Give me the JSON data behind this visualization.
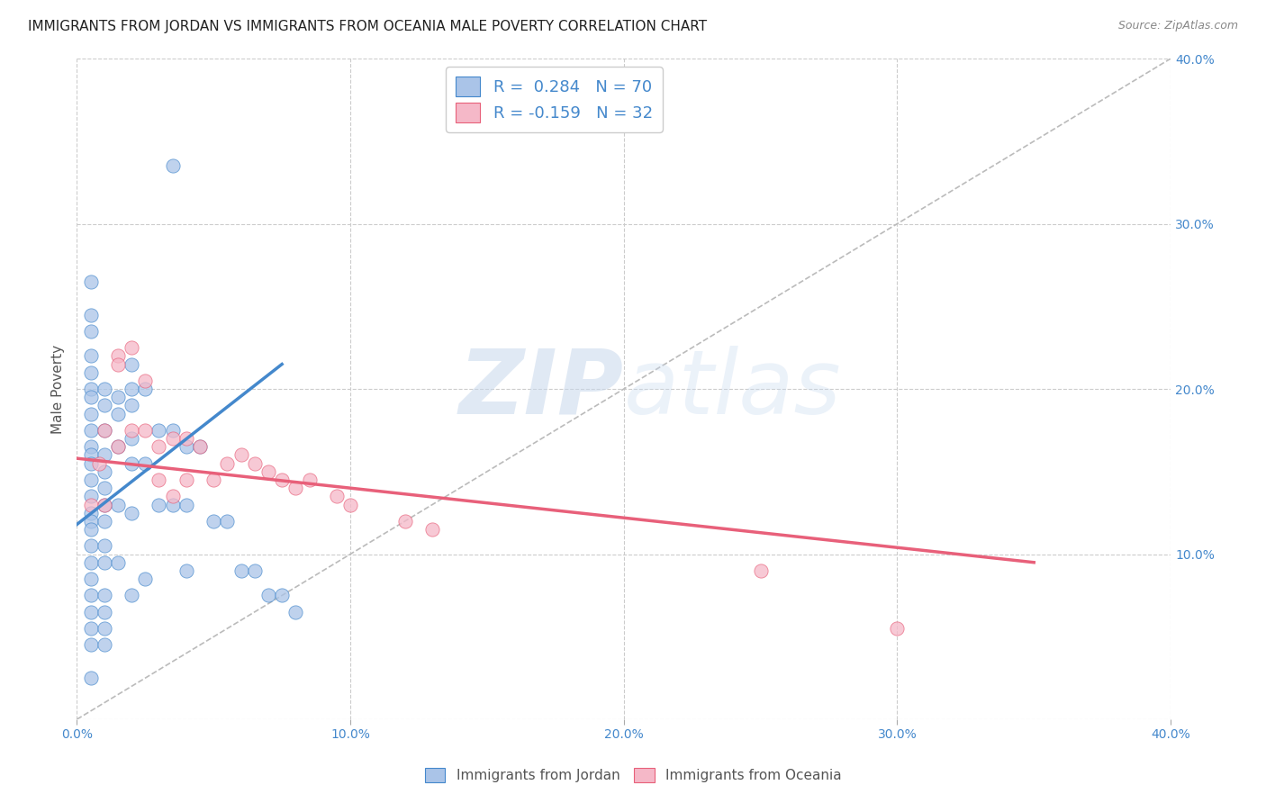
{
  "title": "IMMIGRANTS FROM JORDAN VS IMMIGRANTS FROM OCEANIA MALE POVERTY CORRELATION CHART",
  "source": "Source: ZipAtlas.com",
  "ylabel": "Male Poverty",
  "xlim": [
    0.0,
    0.4
  ],
  "ylim": [
    0.0,
    0.4
  ],
  "xticks": [
    0.0,
    0.1,
    0.2,
    0.3,
    0.4
  ],
  "yticks": [
    0.0,
    0.1,
    0.2,
    0.3,
    0.4
  ],
  "xticklabels": [
    "0.0%",
    "10.0%",
    "20.0%",
    "30.0%",
    "40.0%"
  ],
  "right_yticklabels": [
    "",
    "10.0%",
    "20.0%",
    "30.0%",
    "40.0%"
  ],
  "grid_color": "#cccccc",
  "background_color": "#ffffff",
  "legend_R1": "0.284",
  "legend_N1": "70",
  "legend_R2": "-0.159",
  "legend_N2": "32",
  "jordan_color": "#aac4e8",
  "oceania_color": "#f5b8c8",
  "jordan_line_color": "#4488cc",
  "oceania_line_color": "#e8607a",
  "diagonal_color": "#bbbbbb",
  "jordan_scatter_x": [
    0.005,
    0.005,
    0.005,
    0.005,
    0.005,
    0.005,
    0.005,
    0.005,
    0.005,
    0.005,
    0.005,
    0.005,
    0.005,
    0.005,
    0.005,
    0.005,
    0.005,
    0.005,
    0.005,
    0.005,
    0.005,
    0.005,
    0.005,
    0.005,
    0.005,
    0.01,
    0.01,
    0.01,
    0.01,
    0.01,
    0.01,
    0.01,
    0.01,
    0.01,
    0.01,
    0.01,
    0.01,
    0.01,
    0.01,
    0.015,
    0.015,
    0.015,
    0.015,
    0.015,
    0.02,
    0.02,
    0.02,
    0.02,
    0.02,
    0.02,
    0.02,
    0.025,
    0.025,
    0.025,
    0.03,
    0.03,
    0.035,
    0.035,
    0.04,
    0.04,
    0.04,
    0.045,
    0.05,
    0.055,
    0.06,
    0.065,
    0.07,
    0.075,
    0.08,
    0.035
  ],
  "jordan_scatter_y": [
    0.265,
    0.245,
    0.235,
    0.22,
    0.21,
    0.2,
    0.195,
    0.185,
    0.175,
    0.165,
    0.16,
    0.155,
    0.145,
    0.135,
    0.125,
    0.12,
    0.115,
    0.105,
    0.095,
    0.085,
    0.075,
    0.065,
    0.055,
    0.045,
    0.025,
    0.2,
    0.19,
    0.175,
    0.16,
    0.15,
    0.14,
    0.13,
    0.12,
    0.105,
    0.095,
    0.075,
    0.065,
    0.055,
    0.045,
    0.195,
    0.185,
    0.165,
    0.13,
    0.095,
    0.215,
    0.2,
    0.19,
    0.17,
    0.155,
    0.125,
    0.075,
    0.2,
    0.155,
    0.085,
    0.175,
    0.13,
    0.175,
    0.13,
    0.165,
    0.13,
    0.09,
    0.165,
    0.12,
    0.12,
    0.09,
    0.09,
    0.075,
    0.075,
    0.065,
    0.335
  ],
  "oceania_scatter_x": [
    0.005,
    0.008,
    0.01,
    0.01,
    0.015,
    0.015,
    0.015,
    0.02,
    0.02,
    0.025,
    0.025,
    0.03,
    0.03,
    0.035,
    0.035,
    0.04,
    0.04,
    0.045,
    0.05,
    0.055,
    0.06,
    0.065,
    0.07,
    0.075,
    0.08,
    0.085,
    0.095,
    0.1,
    0.12,
    0.13,
    0.25,
    0.3
  ],
  "oceania_scatter_y": [
    0.13,
    0.155,
    0.175,
    0.13,
    0.22,
    0.215,
    0.165,
    0.225,
    0.175,
    0.205,
    0.175,
    0.165,
    0.145,
    0.17,
    0.135,
    0.17,
    0.145,
    0.165,
    0.145,
    0.155,
    0.16,
    0.155,
    0.15,
    0.145,
    0.14,
    0.145,
    0.135,
    0.13,
    0.12,
    0.115,
    0.09,
    0.055
  ],
  "jordan_line_x": [
    0.0,
    0.075
  ],
  "jordan_line_y": [
    0.118,
    0.215
  ],
  "oceania_line_x": [
    0.0,
    0.35
  ],
  "oceania_line_y": [
    0.158,
    0.095
  ],
  "dot_size": 120
}
